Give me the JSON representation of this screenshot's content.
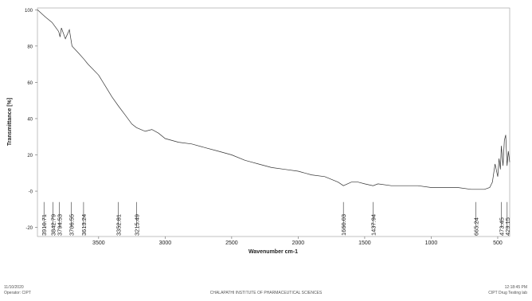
{
  "chart_data": {
    "type": "line",
    "xlabel": "Wavenumber cm-1",
    "ylabel": "Transmittance [%]",
    "xlim": [
      3960,
      410
    ],
    "ylim": [
      -25,
      101
    ],
    "xticks": [
      3500,
      3000,
      2500,
      2000,
      1500,
      1000,
      500
    ],
    "yticks": [
      -20,
      {
        "value": 0,
        "label": "-0"
      },
      20,
      40,
      60,
      80,
      100
    ],
    "series": [
      {
        "color": "#333333",
        "x": [
          3960,
          3900,
          3850,
          3820,
          3800,
          3790,
          3780,
          3750,
          3720,
          3700,
          3650,
          3613,
          3580,
          3500,
          3450,
          3400,
          3352,
          3300,
          3250,
          3215,
          3150,
          3100,
          3050,
          3000,
          2900,
          2800,
          2700,
          2600,
          2500,
          2400,
          2350,
          2300,
          2200,
          2100,
          2000,
          1900,
          1800,
          1700,
          1660,
          1600,
          1550,
          1500,
          1437,
          1400,
          1300,
          1200,
          1100,
          1000,
          900,
          800,
          700,
          665,
          600,
          560,
          540,
          520,
          500,
          490,
          480,
          473,
          460,
          450,
          440,
          430,
          420,
          410
        ],
        "values": [
          100,
          96,
          93,
          90,
          88,
          85,
          90,
          84,
          89,
          80,
          76,
          73,
          70,
          64,
          58,
          52,
          47,
          42,
          37,
          35,
          33,
          34,
          32,
          29,
          27,
          26,
          24,
          22,
          20,
          17,
          16,
          15,
          13,
          12,
          11,
          9,
          8,
          5,
          3,
          5,
          5,
          4,
          3,
          4,
          3,
          3,
          3,
          2,
          2,
          2,
          1,
          1,
          1,
          2,
          5,
          15,
          8,
          18,
          12,
          25,
          14,
          28,
          31,
          14,
          22,
          16
        ]
      }
    ],
    "peaks": [
      3910.71,
      3842.79,
      3794.53,
      3706.55,
      3613.24,
      3352.81,
      3215.49,
      1660.03,
      1437.94,
      665.24,
      473.45,
      429.15
    ]
  },
  "footer": {
    "date": "11/10/2020",
    "operator": "Operator: CIPT",
    "institute": "CHALAPATHI INSTITUTE OF PHARMACEUTICAL SCIENCES",
    "time": "12:18:45 PM",
    "lab": "CIPT Drug Testing lab"
  }
}
